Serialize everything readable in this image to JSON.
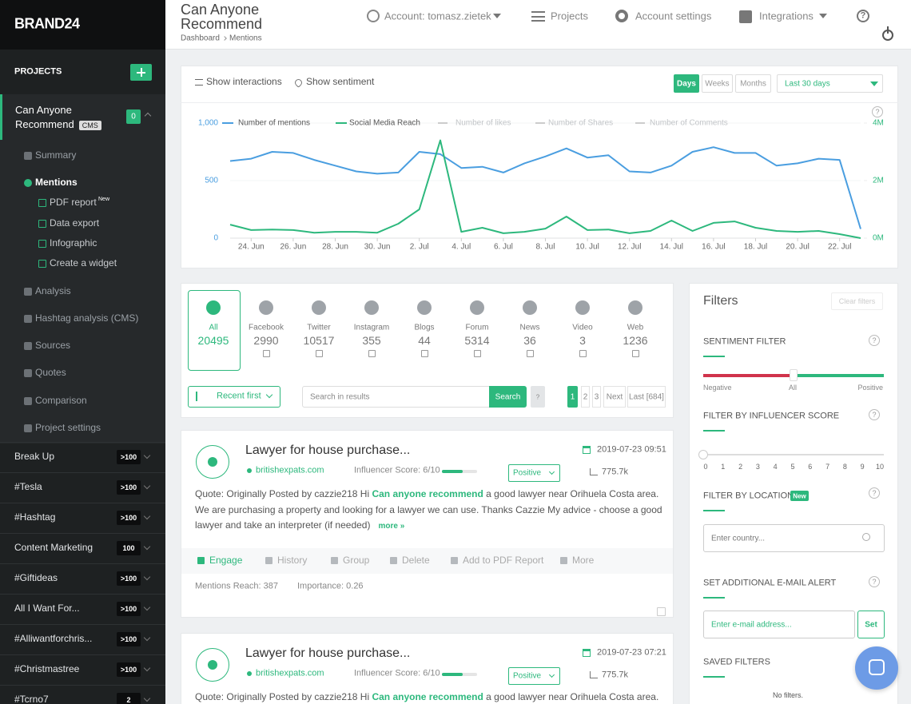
{
  "brand": "BRAND24",
  "help_icon": "?",
  "sidebar": {
    "projects_heading": "PROJECTS",
    "active_project": {
      "name": "Can Anyone Recommend",
      "badge": "CMS",
      "count": 0
    },
    "menu_top": [
      "Summary",
      "Mentions"
    ],
    "submenu": [
      {
        "label": "PDF report",
        "tag": "New"
      },
      {
        "label": "Data export"
      },
      {
        "label": "Infographic"
      },
      {
        "label": "Create a widget"
      }
    ],
    "menu_bottom": [
      "Analysis",
      "Hashtag analysis (CMS)",
      "Sources",
      "Quotes",
      "Comparison",
      "Project settings"
    ],
    "projects": [
      {
        "name": "Break Up",
        "count": ">100"
      },
      {
        "name": "#Tesla",
        "count": ">100"
      },
      {
        "name": "#Hashtag",
        "count": ">100"
      },
      {
        "name": "Content Marketing",
        "count": 100
      },
      {
        "name": "#Giftideas",
        "count": ">100"
      },
      {
        "name": "All I Want For...",
        "count": ">100"
      },
      {
        "name": "#Alliwantforchris...",
        "count": ">100"
      },
      {
        "name": "#Christmastree",
        "count": ">100"
      },
      {
        "name": "#Tcrno7",
        "count": 2
      }
    ]
  },
  "topbar": {
    "title": "Can Anyone Recommend",
    "breadcrumb": [
      "Dashboard",
      "Mentions"
    ],
    "nav": [
      "Account: tomasz.zietek",
      "Projects",
      "Account settings",
      "Integrations"
    ]
  },
  "chart_panel": {
    "toggles": [
      "Show interactions",
      "Show sentiment"
    ],
    "periods": [
      "Days",
      "Weeks",
      "Months"
    ],
    "range": "Last 30 days"
  },
  "chart": {
    "type": "line",
    "categories": [
      null,
      "24. Jun",
      null,
      "26. Jun",
      null,
      "28. Jun",
      null,
      "30. Jun",
      null,
      "2. Jul",
      null,
      "4. Jul",
      null,
      "6. Jul",
      null,
      "8. Jul",
      null,
      "10. Jul",
      null,
      "12. Jul",
      null,
      "14. Jul",
      null,
      "16. Jul",
      null,
      "18. Jul",
      null,
      "20. Jul",
      null,
      "22. Jul",
      null
    ],
    "series": [
      {
        "name": "Number of mentions",
        "color": "#4a9ee0",
        "values": [
          670,
          690,
          750,
          740,
          680,
          630,
          580,
          560,
          570,
          750,
          730,
          610,
          620,
          570,
          650,
          710,
          780,
          700,
          720,
          580,
          570,
          630,
          750,
          790,
          740,
          740,
          630,
          650,
          690,
          680,
          80
        ]
      },
      {
        "name": "Social Media Reach",
        "color": "#2db87d",
        "axis": "y2",
        "values": [
          470000,
          280000,
          300000,
          280000,
          190000,
          220000,
          220000,
          190000,
          500000,
          1000000,
          3400000,
          220000,
          360000,
          170000,
          220000,
          330000,
          750000,
          280000,
          300000,
          170000,
          250000,
          610000,
          250000,
          530000,
          580000,
          360000,
          250000,
          220000,
          250000,
          140000,
          0
        ]
      }
    ],
    "inactive_series": [
      "Number of likes",
      "Number of Shares",
      "Number of Comments"
    ],
    "ylim": [
      0,
      1000
    ],
    "yticks": [
      0,
      500,
      {
        "value": 1000,
        "label": "1,000"
      }
    ],
    "y2lim": [
      0,
      4000000
    ],
    "y2ticks": [
      {
        "value": 0,
        "label": "0M"
      },
      {
        "value": 2000000,
        "label": "2M"
      },
      {
        "value": 4000000,
        "label": "4M"
      }
    ]
  },
  "sources": [
    {
      "name": "All",
      "count": 20495
    },
    {
      "name": "Facebook",
      "count": 2990
    },
    {
      "name": "Twitter",
      "count": 10517
    },
    {
      "name": "Instagram",
      "count": 355
    },
    {
      "name": "Blogs",
      "count": 44
    },
    {
      "name": "Forum",
      "count": 5314
    },
    {
      "name": "News",
      "count": 36
    },
    {
      "name": "Video",
      "count": 3
    },
    {
      "name": "Web",
      "count": 1236
    }
  ],
  "controls": {
    "sort": "Recent first",
    "search_placeholder": "Search in results",
    "search_button": "Search",
    "pages": [
      1,
      2,
      3
    ],
    "next": "Next",
    "last": "Last [684]"
  },
  "mentions": [
    {
      "title": "Lawyer for house purchase...",
      "date": "2019-07-23 09:51",
      "source": "britishexpats.com",
      "influencer": "Influencer Score: 6/10",
      "sentiment": "Positive",
      "reach": "775.7k",
      "quote_before": "Quote: Originally Posted by cazzie218 Hi ",
      "highlight": "Can anyone recommend",
      "quote_after": " a good lawyer near Orihuela Costa area. We are purchasing a property and looking for a lawyer we can use. Thanks Cazzie My advice - choose a good lawyer and take an interpreter (if needed)",
      "more": "more »",
      "actions": [
        "Engage",
        "History",
        "Group",
        "Delete",
        "Add to PDF Report",
        "More"
      ],
      "mentions_reach": "Mentions Reach: 387",
      "importance": "Importance: 0.26"
    },
    {
      "title": "Lawyer for house purchase...",
      "date": "2019-07-23 07:21",
      "source": "britishexpats.com",
      "influencer": "Influencer Score: 6/10",
      "sentiment": "Positive",
      "reach": "775.7k",
      "quote_before": "Quote: Originally Posted by cazzie218 Hi ",
      "highlight": "Can anyone recommend",
      "quote_after": " a good lawyer near Orihuela Costa area. We are"
    }
  ],
  "filters": {
    "title": "Filters",
    "clear": "Clear filters",
    "sentiment": {
      "heading": "SENTIMENT FILTER",
      "labels": [
        "Negative",
        "All",
        "Positive"
      ]
    },
    "influencer": {
      "heading": "FILTER BY INFLUENCER SCORE",
      "scale": [
        0,
        1,
        2,
        3,
        4,
        5,
        6,
        7,
        8,
        9,
        10
      ]
    },
    "location": {
      "heading": "FILTER BY LOCATION",
      "tag": "New",
      "placeholder": "Enter country..."
    },
    "email": {
      "heading": "SET ADDITIONAL E-MAIL ALERT",
      "placeholder": "Enter e-mail address...",
      "button": "Set"
    },
    "saved": {
      "heading": "SAVED FILTERS",
      "empty": "No filters."
    }
  }
}
